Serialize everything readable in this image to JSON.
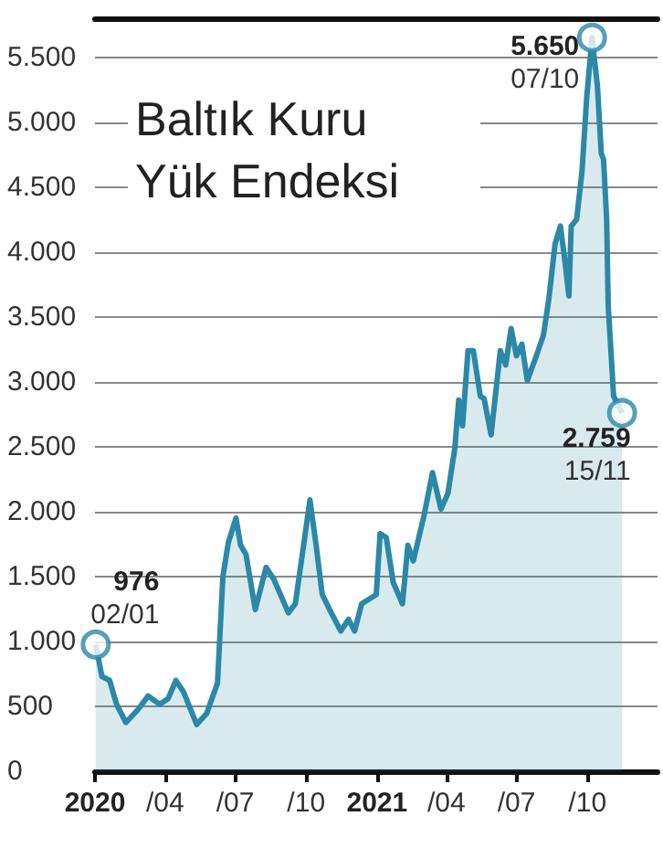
{
  "chart_data": {
    "type": "area",
    "title": "Baltık Kuru Yük Endeksi",
    "x": [
      "2020-01-02",
      "2020-01-10",
      "2020-01-20",
      "2020-01-29",
      "2020-02-10",
      "2020-02-25",
      "2020-03-10",
      "2020-03-25",
      "2020-04-05",
      "2020-04-15",
      "2020-04-25",
      "2020-05-12",
      "2020-05-25",
      "2020-06-08",
      "2020-06-15",
      "2020-06-22",
      "2020-07-02",
      "2020-07-08",
      "2020-07-15",
      "2020-07-27",
      "2020-08-10",
      "2020-08-20",
      "2020-09-08",
      "2020-09-17",
      "2020-10-06",
      "2020-10-14",
      "2020-10-22",
      "2020-11-01",
      "2020-11-15",
      "2020-11-25",
      "2020-12-03",
      "2020-12-12",
      "2020-12-31",
      "2021-01-05",
      "2021-01-13",
      "2021-01-22",
      "2021-02-03",
      "2021-02-10",
      "2021-02-17",
      "2021-03-03",
      "2021-03-14",
      "2021-03-25",
      "2021-04-03",
      "2021-04-12",
      "2021-04-17",
      "2021-04-22",
      "2021-04-29",
      "2021-05-06",
      "2021-05-15",
      "2021-05-20",
      "2021-05-29",
      "2021-06-10",
      "2021-06-17",
      "2021-06-24",
      "2021-07-01",
      "2021-07-08",
      "2021-07-15",
      "2021-07-25",
      "2021-08-05",
      "2021-08-12",
      "2021-08-20",
      "2021-08-27",
      "2021-09-01",
      "2021-09-07",
      "2021-09-10",
      "2021-09-17",
      "2021-09-24",
      "2021-09-30",
      "2021-10-07",
      "2021-10-14",
      "2021-10-19",
      "2021-10-22",
      "2021-10-26",
      "2021-10-28",
      "2021-11-04",
      "2021-11-15"
    ],
    "series": [
      {
        "color": "#2b88a6",
        "values": [
          976,
          730,
          700,
          516,
          375,
          470,
          580,
          516,
          560,
          700,
          610,
          360,
          446,
          680,
          1500,
          1760,
          1950,
          1740,
          1670,
          1245,
          1570,
          1480,
          1220,
          1290,
          2090,
          1740,
          1360,
          1240,
          1080,
          1170,
          1080,
          1290,
          1360,
          1830,
          1800,
          1455,
          1290,
          1740,
          1620,
          1970,
          2300,
          2020,
          2140,
          2490,
          2860,
          2660,
          3240,
          3240,
          2890,
          2870,
          2590,
          3240,
          3130,
          3410,
          3200,
          3290,
          3010,
          3170,
          3360,
          3640,
          4060,
          4200,
          3970,
          3660,
          4200,
          4250,
          4620,
          5180,
          5650,
          5280,
          4760,
          4710,
          4250,
          3590,
          2890,
          2759
        ]
      },
      {
        "type": "scatter",
        "color": "#2b88a6",
        "marker": "circle",
        "x": [
          "2020-01-02",
          "2021-10-07",
          "2021-11-15"
        ],
        "values": [
          976,
          5650,
          2759
        ]
      }
    ],
    "xlim": [
      "2020-01-01",
      "2021-12-31"
    ],
    "xticks": [
      {
        "value": "2020-01-01",
        "label": "2020"
      },
      {
        "value": "2020-04-01",
        "label": "/04"
      },
      {
        "value": "2020-07-01",
        "label": "/07"
      },
      {
        "value": "2020-10-01",
        "label": "/10"
      },
      {
        "value": "2021-01-01",
        "label": "2021"
      },
      {
        "value": "2021-04-01",
        "label": "/04"
      },
      {
        "value": "2021-07-01",
        "label": "/07"
      },
      {
        "value": "2021-10-01",
        "label": "/10"
      }
    ],
    "ylim": [
      0,
      5800
    ],
    "yticks": [
      0,
      500,
      {
        "value": 1000,
        "label": "1.000"
      },
      {
        "value": 1500,
        "label": "1.500"
      },
      {
        "value": 2000,
        "label": "2.000"
      },
      {
        "value": 2500,
        "label": "2.500"
      },
      {
        "value": 3000,
        "label": "3.000"
      },
      {
        "value": 3500,
        "label": "3.500"
      },
      {
        "value": 4000,
        "label": "4.000"
      },
      {
        "value": 4500,
        "label": "4.500"
      },
      {
        "value": 5000,
        "label": "5.000"
      },
      {
        "value": 5500,
        "label": "5.500"
      }
    ],
    "annotations": [
      {
        "text": "976",
        "x": "2020-01-02",
        "y": 976
      },
      {
        "text": "02/01",
        "x": "2020-01-02",
        "y": 976
      },
      {
        "text": "5.650",
        "x": "2021-10-07",
        "y": 5650
      },
      {
        "text": "07/10",
        "x": "2021-10-07",
        "y": 5650
      },
      {
        "text": "2.759",
        "x": "2021-11-15",
        "y": 2759
      },
      {
        "text": "15/11",
        "x": "2021-11-15",
        "y": 2759
      }
    ],
    "grid": "y"
  }
}
